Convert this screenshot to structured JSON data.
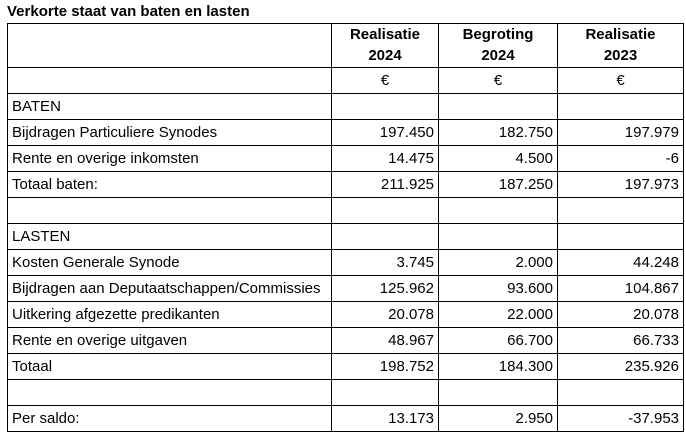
{
  "title": "Verkorte staat van baten en lasten",
  "colors": {
    "border": "#000000",
    "text": "#000000",
    "background": "#ffffff"
  },
  "columns": [
    {
      "line1": "Realisatie",
      "line2": "2024",
      "unit": "€"
    },
    {
      "line1": "Begroting",
      "line2": "2024",
      "unit": "€"
    },
    {
      "line1": "Realisatie",
      "line2": "2023",
      "unit": "€"
    }
  ],
  "rows": [
    {
      "label": "BATEN",
      "values": [
        "",
        "",
        ""
      ],
      "bold_label": false,
      "bold_values": false
    },
    {
      "label": "Bijdragen Particuliere Synodes",
      "values": [
        "197.450",
        "182.750",
        "197.979"
      ],
      "bold_label": false,
      "bold_values": false
    },
    {
      "label": "Rente en overige inkomsten",
      "values": [
        "14.475",
        "4.500",
        "-6"
      ],
      "bold_label": false,
      "bold_values": false
    },
    {
      "label": "Totaal baten:",
      "values": [
        "211.925",
        "187.250",
        "197.973"
      ],
      "bold_label": false,
      "bold_values": true
    },
    {
      "label": "",
      "values": [
        "",
        "",
        ""
      ],
      "bold_label": false,
      "bold_values": false
    },
    {
      "label": "LASTEN",
      "values": [
        "",
        "",
        ""
      ],
      "bold_label": false,
      "bold_values": false
    },
    {
      "label": "Kosten Generale Synode",
      "values": [
        "3.745",
        "2.000",
        "44.248"
      ],
      "bold_label": false,
      "bold_values": false
    },
    {
      "label": "Bijdragen aan Deputaatschappen/Commissies",
      "values": [
        "125.962",
        "93.600",
        "104.867"
      ],
      "bold_label": false,
      "bold_values": false
    },
    {
      "label": "Uitkering afgezette predikanten",
      "values": [
        "20.078",
        "22.000",
        "20.078"
      ],
      "bold_label": false,
      "bold_values": false
    },
    {
      "label": "Rente en overige uitgaven",
      "values": [
        "48.967",
        "66.700",
        "66.733"
      ],
      "bold_label": false,
      "bold_values": false
    },
    {
      "label": "Totaal",
      "values": [
        "198.752",
        "184.300",
        "235.926"
      ],
      "bold_label": false,
      "bold_values": true
    },
    {
      "label": "",
      "values": [
        "",
        "",
        ""
      ],
      "bold_label": false,
      "bold_values": false
    },
    {
      "label": "Per saldo:",
      "values": [
        "13.173",
        "2.950",
        "-37.953"
      ],
      "bold_label": true,
      "bold_values": true
    }
  ]
}
